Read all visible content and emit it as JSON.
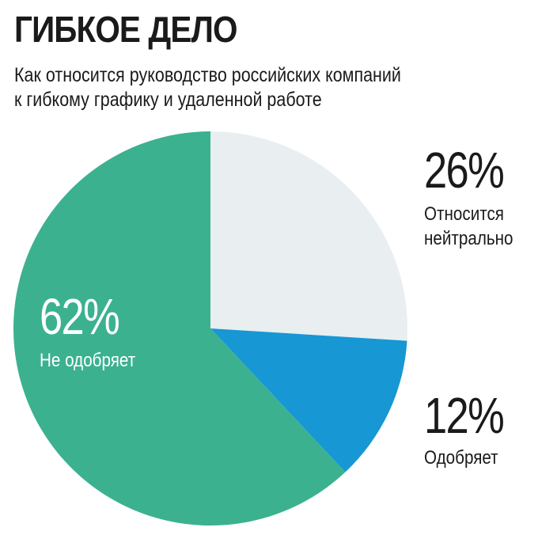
{
  "header": {
    "title": "ГИБКОЕ ДЕЛО",
    "subtitle_line1": "Как относится руководство российских компаний",
    "subtitle_line2": "к гибкому графику и удаленной работе"
  },
  "labels": {
    "neutral": {
      "pct": "26%",
      "line1": "Относится",
      "line2": "нейтрально"
    },
    "approve": {
      "pct": "12%",
      "line1": "Одобряет"
    },
    "disapprove": {
      "pct": "62%",
      "line1": "Не одобряет"
    }
  },
  "chart_data": {
    "type": "pie",
    "title": "ГИБКОЕ ДЕЛО",
    "subtitle": "Как относится руководство российских компаний к гибкому графику и удаленной работе",
    "slices": [
      {
        "label": "Относится нейтрально",
        "value": 26,
        "color": "#e9eef0"
      },
      {
        "label": "Одобряет",
        "value": 12,
        "color": "#1797d4"
      },
      {
        "label": "Не одобряет",
        "value": 62,
        "color": "#3bb190"
      }
    ],
    "start": "12 o'clock, clockwise"
  }
}
